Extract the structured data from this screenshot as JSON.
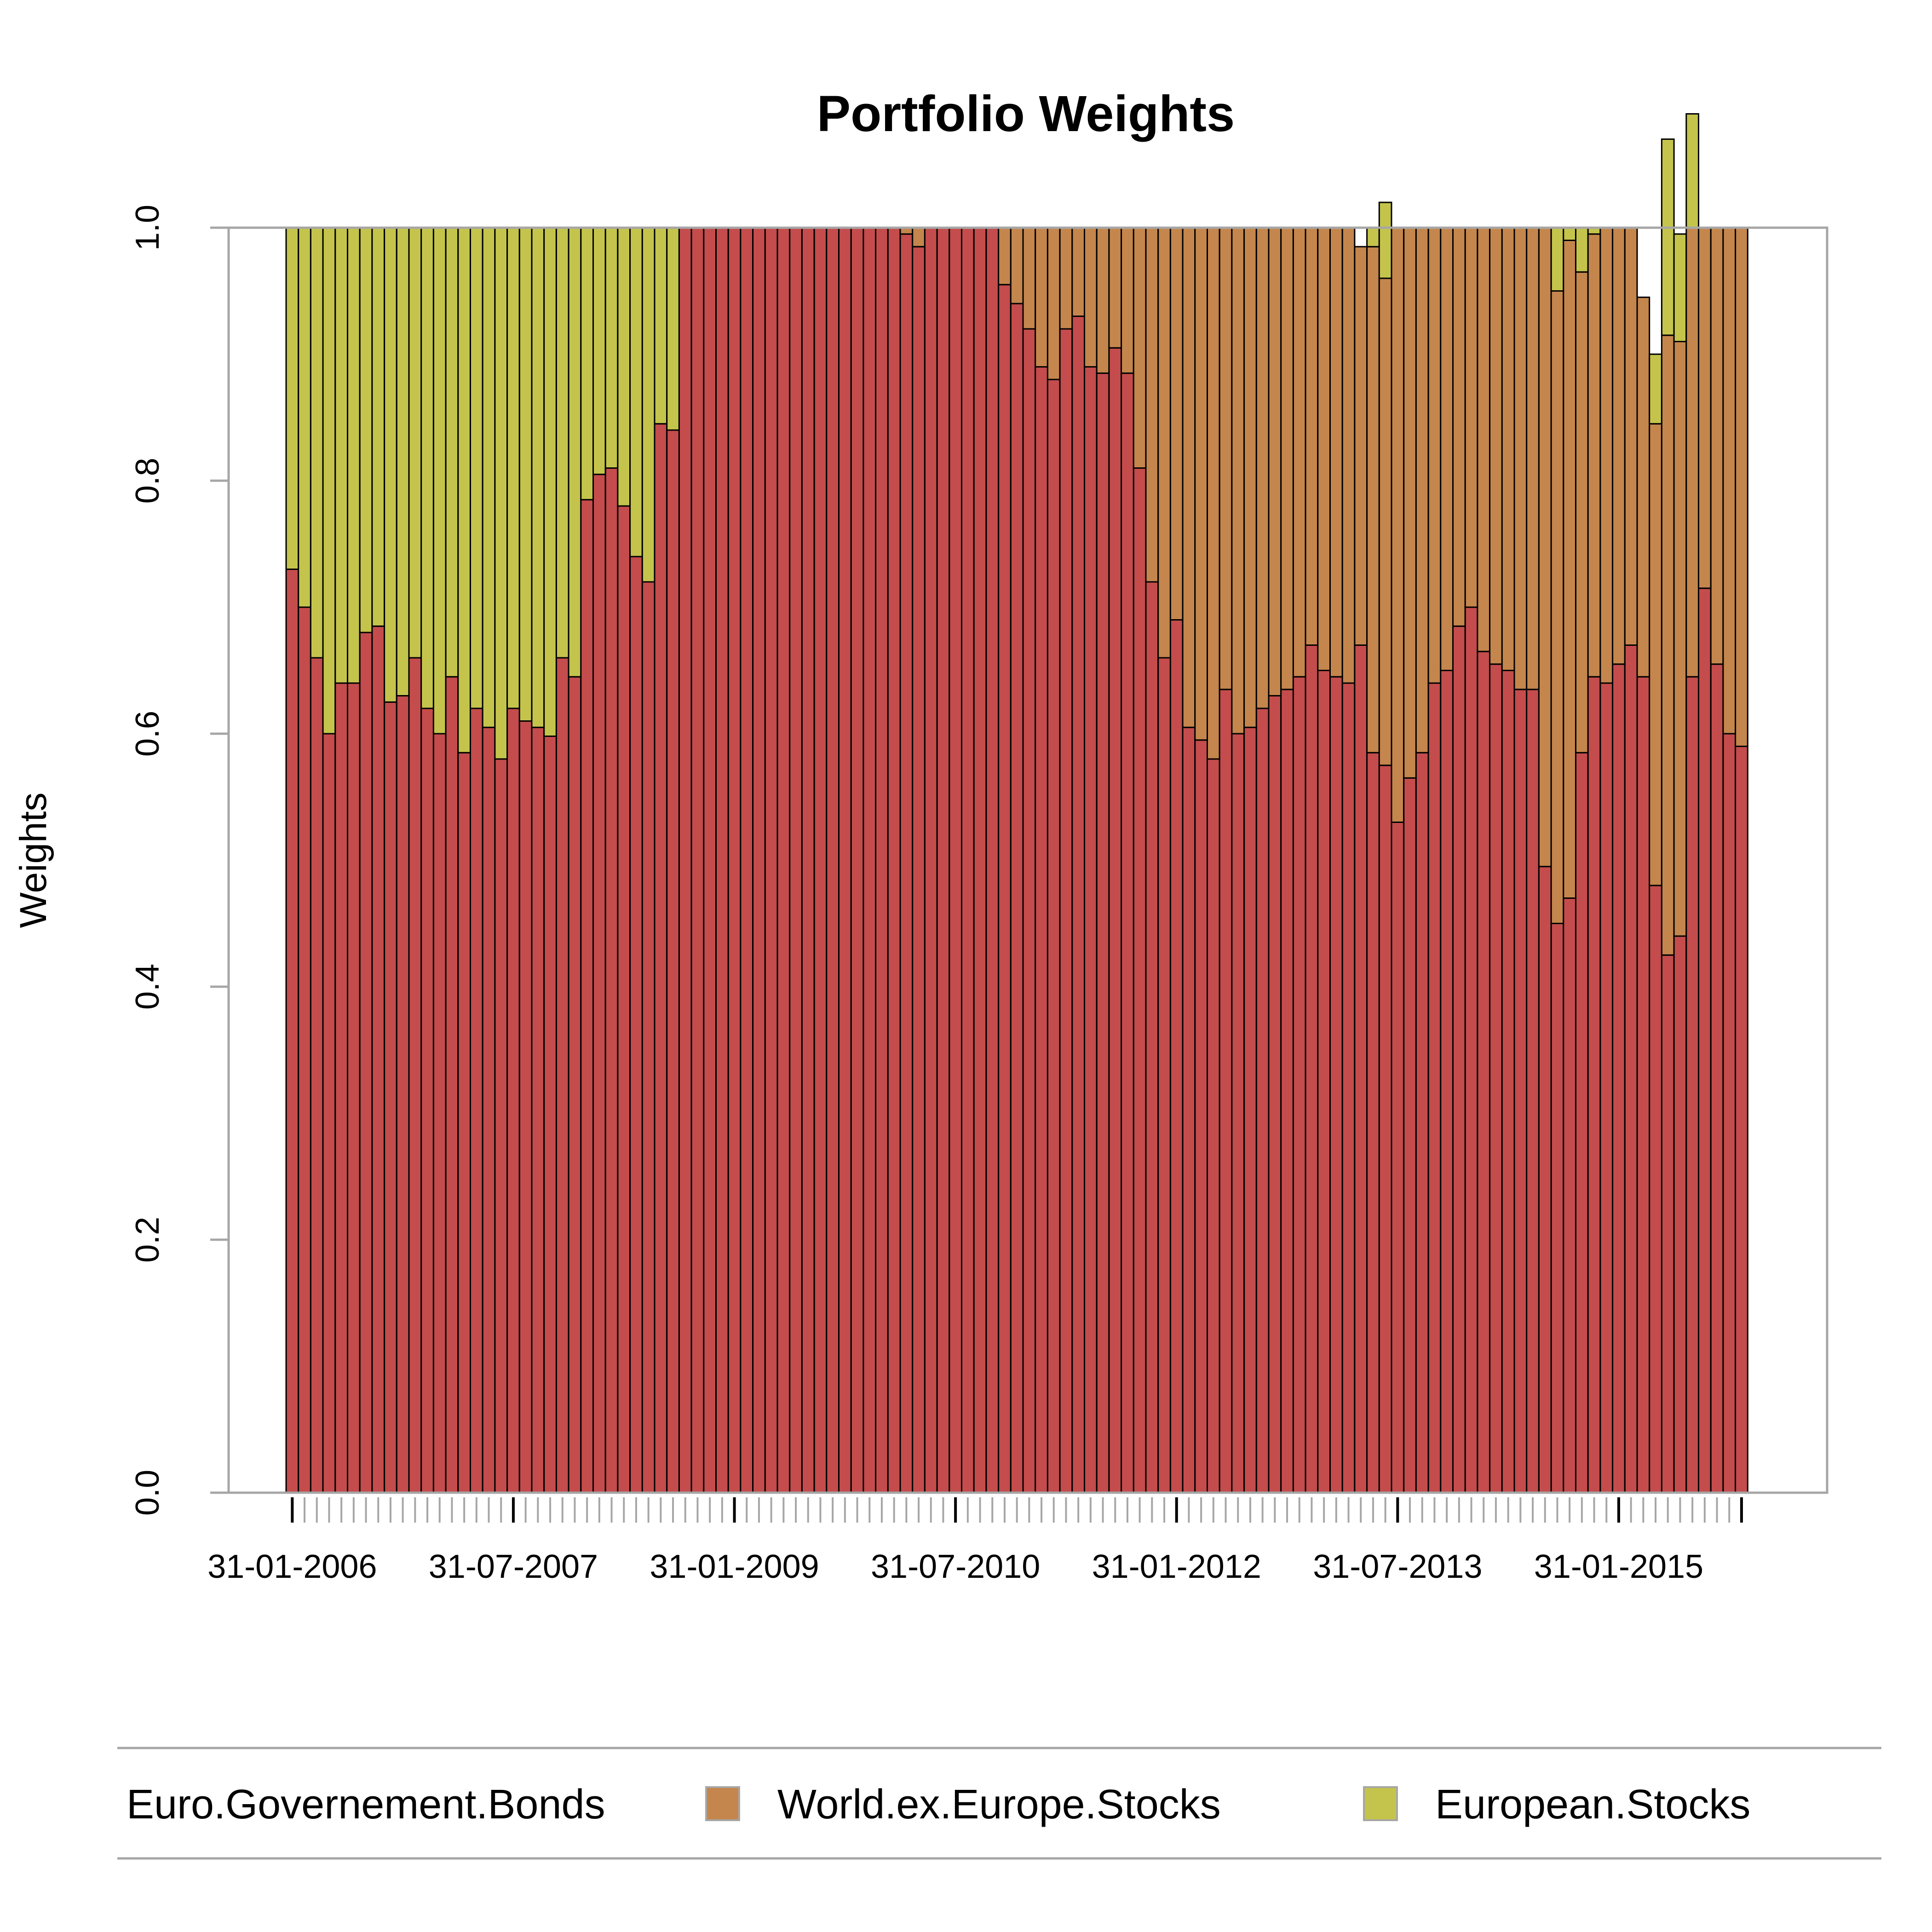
{
  "chart_data": {
    "type": "bar",
    "stacked": true,
    "title": "Portfolio Weights",
    "ylabel": "Weights",
    "xlabel": "",
    "ylim": [
      0,
      1
    ],
    "yticks": [
      "0.0",
      "0.2",
      "0.4",
      "0.6",
      "0.8",
      "1.0"
    ],
    "x_tick_labels": [
      "31-01-2006",
      "31-07-2007",
      "31-01-2009",
      "31-07-2010",
      "31-01-2012",
      "31-07-2013",
      "31-01-2015"
    ],
    "grid": false,
    "legend_position": "bottom",
    "series": [
      {
        "name": "Euro.Governement.Bonds",
        "color": "#c44c4c",
        "values": [
          0.73,
          0.7,
          0.66,
          0.6,
          0.64,
          0.64,
          0.68,
          0.685,
          0.625,
          0.63,
          0.66,
          0.62,
          0.6,
          0.645,
          0.585,
          0.62,
          0.605,
          0.58,
          0.62,
          0.61,
          0.605,
          0.598,
          0.66,
          0.645,
          0.785,
          0.805,
          0.81,
          0.78,
          0.74,
          0.72,
          0.845,
          0.84,
          1,
          1,
          1,
          1,
          1,
          1,
          1,
          1,
          1,
          1,
          1,
          1,
          1,
          1,
          1,
          1,
          1,
          1,
          0.995,
          0.985,
          1,
          1,
          1,
          1,
          1,
          1,
          0.955,
          0.94,
          0.92,
          0.89,
          0.88,
          0.92,
          0.93,
          0.89,
          0.885,
          0.905,
          0.885,
          0.81,
          0.72,
          0.66,
          0.69,
          0.605,
          0.595,
          0.58,
          0.635,
          0.6,
          0.605,
          0.62,
          0.63,
          0.635,
          0.645,
          0.67,
          0.65,
          0.645,
          0.64,
          0.67,
          0.585,
          0.575,
          0.53,
          0.565,
          0.585,
          0.64,
          0.65,
          0.685,
          0.7,
          0.665,
          0.655,
          0.65,
          0.635,
          0.635,
          0.495,
          0.45,
          0.47,
          0.585,
          0.645,
          0.64,
          0.655,
          0.67,
          0.645,
          0.48,
          0.425,
          0.44,
          0.645,
          0.715,
          0.655,
          0.6,
          0.59
        ]
      },
      {
        "name": "World.ex.Europe.Stocks",
        "color": "#c4864c",
        "values": [
          0,
          0,
          0,
          0,
          0,
          0,
          0,
          0,
          0,
          0,
          0,
          0,
          0,
          0,
          0,
          0,
          0,
          0,
          0,
          0,
          0,
          0,
          0,
          0,
          0,
          0,
          0,
          0,
          0,
          0,
          0,
          0,
          0,
          0,
          0,
          0,
          0,
          0,
          0,
          0,
          0,
          0,
          0,
          0,
          0,
          0,
          0,
          0,
          0,
          0,
          0.005,
          0.015,
          0,
          0,
          0,
          0,
          0,
          0,
          0.045,
          0.06,
          0.08,
          0.11,
          0.12,
          0.08,
          0.07,
          0.11,
          0.115,
          0.095,
          0.115,
          0.19,
          0.28,
          0.34,
          0.31,
          0.395,
          0.405,
          0.42,
          0.365,
          0.4,
          0.395,
          0.38,
          0.37,
          0.365,
          0.355,
          0.33,
          0.35,
          0.355,
          0.36,
          0.315,
          0.4,
          0.385,
          0.47,
          0.435,
          0.415,
          0.36,
          0.35,
          0.315,
          0.3,
          0.335,
          0.345,
          0.35,
          0.365,
          0.365,
          0.505,
          0.5,
          0.52,
          0.38,
          0.35,
          0.36,
          0.345,
          0.33,
          0.3,
          0.365,
          0.49,
          0.47,
          0.355,
          0.285,
          0.345,
          0.4,
          0.41
        ]
      },
      {
        "name": "European.Stocks",
        "color": "#c4c44c",
        "values": [
          0.27,
          0.3,
          0.34,
          0.4,
          0.36,
          0.36,
          0.32,
          0.315,
          0.375,
          0.37,
          0.34,
          0.38,
          0.4,
          0.355,
          0.415,
          0.38,
          0.395,
          0.42,
          0.38,
          0.39,
          0.395,
          0.402,
          0.34,
          0.355,
          0.215,
          0.195,
          0.19,
          0.22,
          0.26,
          0.28,
          0.155,
          0.16,
          0,
          0,
          0,
          0,
          0,
          0,
          0,
          0,
          0,
          0,
          0,
          0,
          0,
          0,
          0,
          0,
          0,
          0,
          0,
          0,
          0,
          0,
          0,
          0,
          0,
          0,
          0,
          0,
          0,
          0,
          0,
          0,
          0,
          0,
          0,
          0,
          0,
          0,
          0,
          0,
          0,
          0,
          0,
          0,
          0,
          0,
          0,
          0,
          0,
          0,
          0,
          0,
          0,
          0,
          0,
          0,
          0.015,
          0.06,
          0,
          0,
          0,
          0,
          0,
          0,
          0,
          0,
          0,
          0,
          0,
          0,
          0,
          0.05,
          0.01,
          0.035,
          0.005,
          0,
          0,
          0,
          0,
          0.055,
          0.155,
          0.085,
          0.09,
          0,
          0,
          0,
          0,
          0
        ]
      }
    ]
  }
}
